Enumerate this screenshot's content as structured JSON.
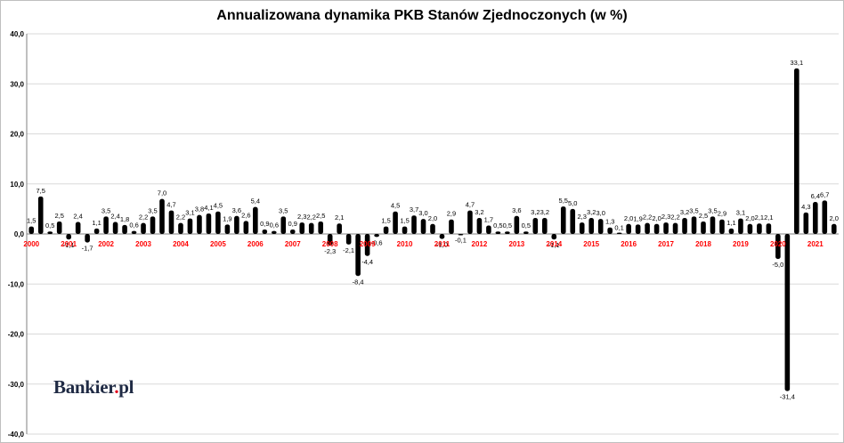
{
  "chart_data": {
    "type": "bar",
    "title": "Annualizowana dynamika PKB Stanów Zjednoczonych (w %)",
    "xlabel": "",
    "ylabel": "",
    "ylim": [
      -40,
      40
    ],
    "y_ticks": [
      "-40,0",
      "-30,0",
      "-20,0",
      "-10,0",
      "0,0",
      "10,0",
      "20,0",
      "30,0",
      "40,0"
    ],
    "grid": true,
    "bar_color": "#000000",
    "year_label_color": "#ff0000",
    "years": [
      "2000",
      "2001",
      "2002",
      "2003",
      "2004",
      "2005",
      "2006",
      "2007",
      "2008",
      "2009",
      "2010",
      "2011",
      "2012",
      "2013",
      "2014",
      "2015",
      "2016",
      "2017",
      "2018",
      "2019",
      "2020",
      "2021"
    ],
    "values": [
      1.5,
      7.5,
      0.5,
      2.5,
      -1.1,
      2.4,
      -1.7,
      1.1,
      3.5,
      2.4,
      1.8,
      0.6,
      2.2,
      3.5,
      7.0,
      4.7,
      2.2,
      3.1,
      3.8,
      4.1,
      4.5,
      1.9,
      3.6,
      2.6,
      5.4,
      0.9,
      0.6,
      3.5,
      0.9,
      2.3,
      2.2,
      2.5,
      -2.3,
      2.1,
      -2.1,
      -8.4,
      -4.4,
      -0.6,
      1.5,
      4.5,
      1.5,
      3.7,
      3.0,
      2.0,
      -1.0,
      2.9,
      -0.1,
      4.7,
      3.2,
      1.7,
      0.5,
      0.5,
      3.6,
      0.5,
      3.2,
      3.2,
      -1.1,
      5.5,
      5.0,
      2.3,
      3.2,
      3.0,
      1.3,
      0.1,
      2.0,
      1.9,
      2.2,
      2.0,
      2.3,
      2.2,
      3.2,
      3.5,
      2.5,
      3.5,
      2.9,
      1.1,
      3.1,
      2.0,
      2.1,
      2.1,
      -5.0,
      -31.4,
      33.1,
      4.3,
      6.4,
      6.7,
      2.0
    ],
    "value_labels": [
      "1,5",
      "7,5",
      "0,5",
      "2,5",
      "-1,1",
      "2,4",
      "-1,7",
      "1,1",
      "3,5",
      "2,4",
      "1,8",
      "0,6",
      "2,2",
      "3,5",
      "7,0",
      "4,7",
      "2,2",
      "3,1",
      "3,8",
      "4,1",
      "4,5",
      "1,9",
      "3,6",
      "2,6",
      "5,4",
      "0,9",
      "0,6",
      "3,5",
      "0,9",
      "2,3",
      "2,2",
      "2,5",
      "-2,3",
      "2,1",
      "-2,1",
      "-8,4",
      "-4,4",
      "-0,6",
      "1,5",
      "4,5",
      "1,5",
      "3,7",
      "3,0",
      "2,0",
      "-1,0",
      "2,9",
      "-0,1",
      "4,7",
      "3,2",
      "1,7",
      "0,5",
      "0,5",
      "3,6",
      "0,5",
      "3,2",
      "3,2",
      "-1,1",
      "5,5",
      "5,0",
      "2,3",
      "3,2",
      "3,0",
      "1,3",
      "0,1",
      "2,0",
      "1,9",
      "2,2",
      "2,0",
      "2,3",
      "2,2",
      "3,2",
      "3,5",
      "2,5",
      "3,5",
      "2,9",
      "1,1",
      "3,1",
      "2,0",
      "2,1",
      "2,1",
      "-5,0",
      "-31,4",
      "33,1",
      "4,3",
      "6,4",
      "6,7",
      "2,0"
    ]
  },
  "logo": {
    "name": "Bankier",
    "dot": ".",
    "suffix": "pl"
  }
}
